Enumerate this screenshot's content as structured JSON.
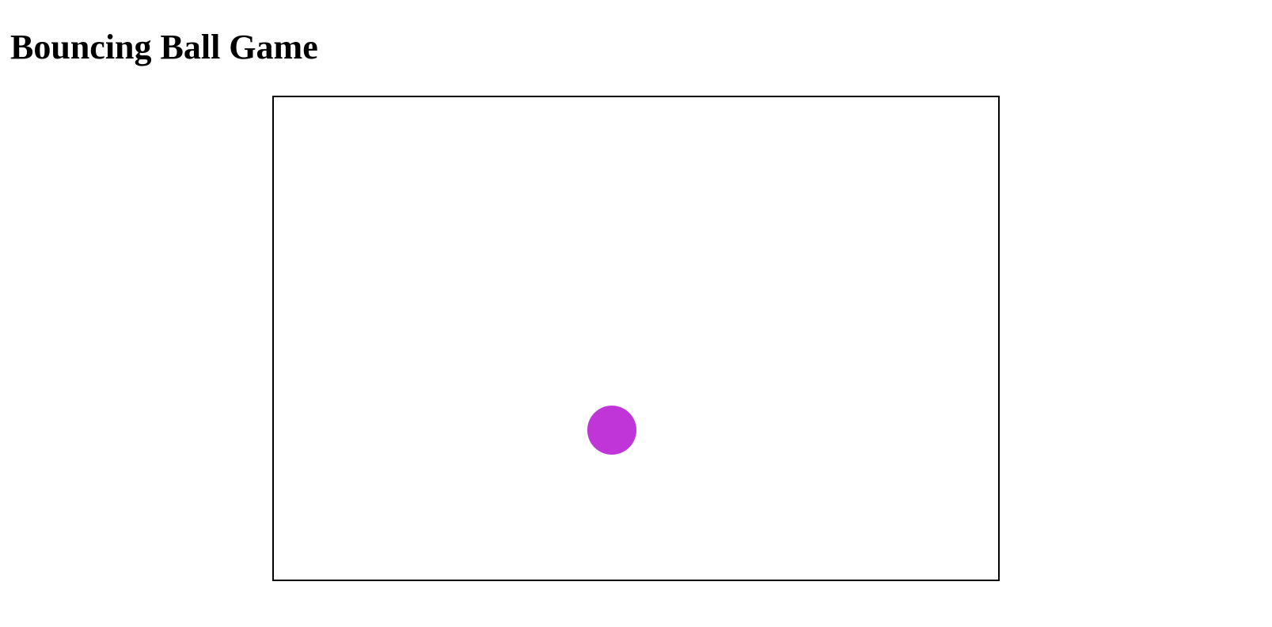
{
  "page": {
    "title": "Bouncing Ball Game"
  },
  "game": {
    "ball": {
      "color": "#BF35D8",
      "icon": "ball-icon"
    },
    "canvas": {
      "background": "#FFFFFF",
      "border_color": "#000000"
    }
  }
}
